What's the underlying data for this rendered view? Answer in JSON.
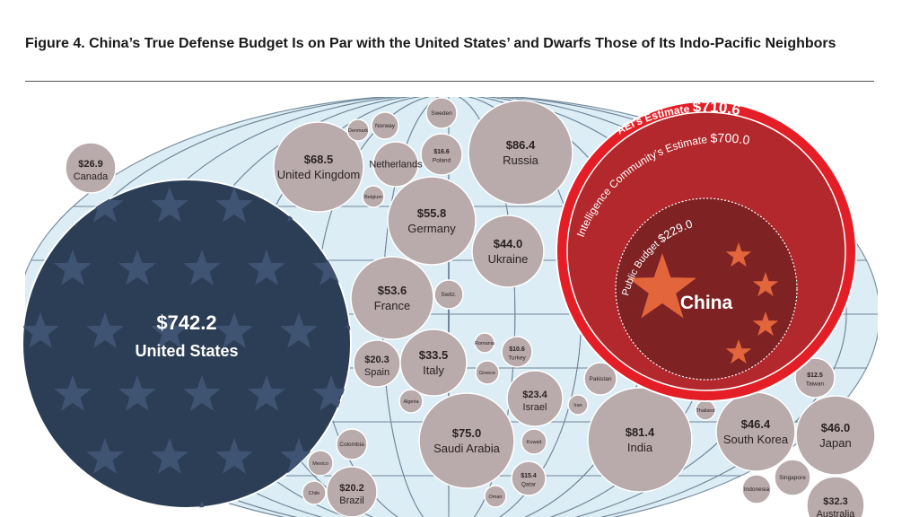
{
  "title": "Figure 4. China’s True Defense Budget Is on Par with the United States’ and Dwarfs Those of Its Indo-Pacific Neighbors",
  "colors": {
    "bubble": "#b9aaab",
    "bubble_stroke": "#ffffff",
    "us": "#2c3e55",
    "china_outer": "#e41e26",
    "china_mid": "#b2282c",
    "china_inner": "#7e2224",
    "star_china": "#e2653b",
    "map_bg": "#dcedf5"
  },
  "chart_data": {
    "type": "bubble",
    "unit": "$ billions",
    "china": {
      "label": "China",
      "estimates": [
        {
          "name": "AEI’s Estimate",
          "value": 710.6,
          "value_label": "$710.6"
        },
        {
          "name": "Intelligence Community’s Estimate",
          "value": 700.0,
          "value_label": "$700.0"
        },
        {
          "name": "Public Budget",
          "value": 229.0,
          "value_label": "$229.0"
        }
      ]
    },
    "bubbles": [
      {
        "name": "United States",
        "value": 742.2,
        "label": "$742.2",
        "style": "us"
      },
      {
        "name": "Canada",
        "value": 26.9,
        "label": "$26.9"
      },
      {
        "name": "United Kingdom",
        "value": 68.5,
        "label": "$68.5"
      },
      {
        "name": "Denmark",
        "value": null,
        "label": ""
      },
      {
        "name": "Norway",
        "value": null,
        "label": ""
      },
      {
        "name": "Sweden",
        "value": null,
        "label": ""
      },
      {
        "name": "Netherlands",
        "value": null,
        "label": ""
      },
      {
        "name": "Poland",
        "value": 16.6,
        "label": "$16.6"
      },
      {
        "name": "Belgium",
        "value": null,
        "label": ""
      },
      {
        "name": "Russia",
        "value": 86.4,
        "label": "$86.4"
      },
      {
        "name": "Germany",
        "value": 55.8,
        "label": "$55.8"
      },
      {
        "name": "Ukraine",
        "value": 44.0,
        "label": "$44.0"
      },
      {
        "name": "France",
        "value": 53.6,
        "label": "$53.6"
      },
      {
        "name": "Switz.",
        "value": null,
        "label": ""
      },
      {
        "name": "Spain",
        "value": 20.3,
        "label": "$20.3"
      },
      {
        "name": "Italy",
        "value": 33.5,
        "label": "$33.5"
      },
      {
        "name": "Romania",
        "value": null,
        "label": ""
      },
      {
        "name": "Turkey",
        "value": 10.6,
        "label": "$10.6"
      },
      {
        "name": "Greece",
        "value": null,
        "label": ""
      },
      {
        "name": "Algeria",
        "value": null,
        "label": ""
      },
      {
        "name": "Israel",
        "value": 23.4,
        "label": "$23.4"
      },
      {
        "name": "Pakistan",
        "value": null,
        "label": ""
      },
      {
        "name": "Iran",
        "value": null,
        "label": ""
      },
      {
        "name": "Saudi Arabia",
        "value": 75.0,
        "label": "$75.0"
      },
      {
        "name": "Kuwait",
        "value": null,
        "label": ""
      },
      {
        "name": "Qatar",
        "value": 15.4,
        "label": "$15.4"
      },
      {
        "name": "Oman",
        "value": null,
        "label": ""
      },
      {
        "name": "India",
        "value": 81.4,
        "label": "$81.4"
      },
      {
        "name": "Thailand",
        "value": null,
        "label": ""
      },
      {
        "name": "South Korea",
        "value": 46.4,
        "label": "$46.4"
      },
      {
        "name": "Taiwan",
        "value": 12.5,
        "label": "$12.5"
      },
      {
        "name": "Japan",
        "value": 46.0,
        "label": "$46.0"
      },
      {
        "name": "Indonesia",
        "value": null,
        "label": ""
      },
      {
        "name": "Singapore",
        "value": null,
        "label": ""
      },
      {
        "name": "Australia",
        "value": 32.3,
        "label": "$32.3"
      },
      {
        "name": "Colombia",
        "value": null,
        "label": ""
      },
      {
        "name": "Mexico",
        "value": null,
        "label": ""
      },
      {
        "name": "Chile",
        "value": null,
        "label": ""
      },
      {
        "name": "Brazil",
        "value": 20.2,
        "label": "$20.2"
      }
    ]
  }
}
